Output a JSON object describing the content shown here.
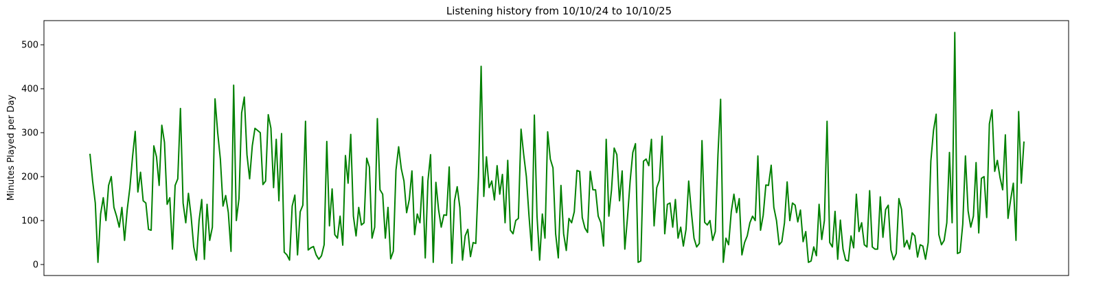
{
  "chart_data": {
    "type": "line",
    "title": "Listening history from 10/10/24 to 10/10/25",
    "xlabel": "",
    "ylabel": "Minutes Played per Day",
    "ylim": [
      -25,
      555
    ],
    "yticks": [
      0,
      100,
      200,
      300,
      400,
      500
    ],
    "x_tick_labels_shown": false,
    "grid": false,
    "legend": "none",
    "line_color": "#008000",
    "series": [
      {
        "values": [
          252,
          190,
          140,
          5,
          115,
          152,
          100,
          180,
          200,
          130,
          110,
          85,
          130,
          55,
          125,
          175,
          245,
          303,
          165,
          210,
          145,
          140,
          80,
          78,
          270,
          245,
          180,
          317,
          278,
          137,
          152,
          35,
          180,
          195,
          355,
          140,
          95,
          162,
          110,
          40,
          10,
          100,
          148,
          12,
          137,
          55,
          85,
          377,
          300,
          240,
          133,
          157,
          118,
          30,
          408,
          100,
          150,
          345,
          381,
          250,
          195,
          270,
          310,
          305,
          300,
          182,
          190,
          341,
          310,
          175,
          285,
          145,
          298,
          28,
          22,
          10,
          133,
          158,
          22,
          120,
          135,
          326,
          33,
          38,
          41,
          22,
          12,
          20,
          45,
          280,
          88,
          172,
          68,
          60,
          110,
          44,
          248,
          185,
          296,
          110,
          65,
          130,
          90,
          95,
          242,
          222,
          60,
          85,
          332,
          170,
          160,
          60,
          130,
          13,
          30,
          215,
          268,
          218,
          190,
          118,
          148,
          213,
          68,
          115,
          95,
          200,
          15,
          190,
          250,
          5,
          187,
          125,
          85,
          113,
          112,
          222,
          3,
          145,
          177,
          130,
          10,
          65,
          80,
          18,
          50,
          48,
          200,
          451,
          155,
          245,
          175,
          190,
          147,
          225,
          160,
          205,
          95,
          237,
          78,
          70,
          100,
          105,
          308,
          250,
          200,
          110,
          32,
          340,
          110,
          10,
          115,
          60,
          302,
          240,
          220,
          70,
          15,
          180,
          70,
          32,
          105,
          95,
          120,
          214,
          212,
          107,
          83,
          73,
          212,
          170,
          170,
          110,
          95,
          42,
          285,
          110,
          170,
          265,
          250,
          145,
          213,
          35,
          107,
          190,
          255,
          275,
          5,
          8,
          235,
          240,
          225,
          285,
          88,
          175,
          192,
          292,
          70,
          137,
          140,
          85,
          148,
          60,
          85,
          42,
          80,
          190,
          120,
          60,
          40,
          48,
          282,
          96,
          90,
          100,
          55,
          75,
          250,
          376,
          5,
          60,
          45,
          120,
          160,
          118,
          150,
          22,
          50,
          65,
          95,
          110,
          100,
          247,
          78,
          112,
          181,
          180,
          226,
          130,
          100,
          45,
          52,
          95,
          188,
          100,
          140,
          135,
          97,
          124,
          52,
          75,
          5,
          8,
          40,
          20,
          137,
          57,
          100,
          326,
          50,
          40,
          121,
          12,
          101,
          35,
          10,
          8,
          65,
          38,
          160,
          75,
          95,
          45,
          40,
          168,
          40,
          35,
          35,
          154,
          62,
          125,
          135,
          33,
          11,
          25,
          150,
          125,
          40,
          55,
          35,
          72,
          65,
          17,
          45,
          42,
          12,
          50,
          235,
          305,
          342,
          68,
          45,
          55,
          95,
          255,
          95,
          528,
          25,
          28,
          92,
          247,
          122,
          85,
          110,
          232,
          72,
          196,
          200,
          107,
          320,
          352,
          212,
          237,
          198,
          170,
          295,
          105,
          148,
          185,
          55,
          348,
          185,
          280
        ]
      }
    ]
  }
}
